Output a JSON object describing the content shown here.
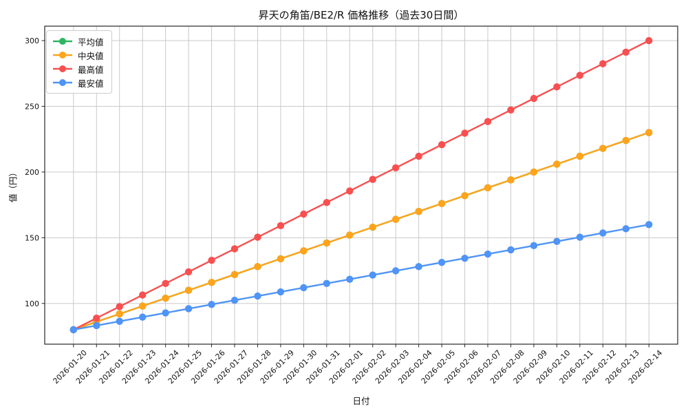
{
  "chart_data": {
    "type": "line",
    "title": "昇天の角笛/BE2/R  価格推移（過去30日間）",
    "xlabel": "日付",
    "ylabel": "値（円）",
    "grid": true,
    "legend_position": "upper left",
    "xtick_rotation": 45,
    "ylim": [
      69,
      311
    ],
    "y_ticks": [
      100,
      150,
      200,
      250,
      300
    ],
    "categories": [
      "2026-01-20",
      "2026-01-21",
      "2026-01-22",
      "2026-01-23",
      "2026-01-24",
      "2026-01-25",
      "2026-01-26",
      "2026-01-27",
      "2026-01-28",
      "2026-01-29",
      "2026-01-30",
      "2026-01-31",
      "2026-02-01",
      "2026-02-02",
      "2026-02-03",
      "2026-02-04",
      "2026-02-05",
      "2026-02-06",
      "2026-02-07",
      "2026-02-08",
      "2026-02-09",
      "2026-02-10",
      "2026-02-11",
      "2026-02-12",
      "2026-02-13",
      "2026-02-14"
    ],
    "series": [
      {
        "key": "mean",
        "name": "平均値",
        "color": "#2db563",
        "values": [
          80,
          86,
          92,
          98,
          104,
          110,
          116,
          122,
          128,
          134,
          140,
          146,
          152,
          158,
          164,
          170,
          176,
          182,
          188,
          194,
          200,
          206,
          212,
          218,
          224,
          230
        ]
      },
      {
        "key": "median",
        "name": "中央値",
        "color": "#ffa41c",
        "values": [
          80,
          86,
          92,
          98,
          104,
          110,
          116,
          122,
          128,
          134,
          140,
          146,
          152,
          158,
          164,
          170,
          176,
          182,
          188,
          194,
          200,
          206,
          212,
          218,
          224,
          230
        ]
      },
      {
        "key": "max",
        "name": "最高値",
        "color": "#f85050",
        "values": [
          80,
          88.8,
          97.6,
          106.4,
          115.2,
          124,
          132.8,
          141.6,
          150.4,
          159.2,
          168,
          176.8,
          185.6,
          194.4,
          203.2,
          212,
          220.8,
          229.6,
          238.4,
          247.2,
          256,
          264.8,
          273.6,
          282.4,
          291.2,
          300
        ]
      },
      {
        "key": "min",
        "name": "最安値",
        "color": "#4f94f6",
        "values": [
          80,
          83.2,
          86.4,
          89.6,
          92.8,
          96,
          99.2,
          102.4,
          105.6,
          108.8,
          112,
          115.2,
          118.4,
          121.6,
          124.8,
          128,
          131.2,
          134.4,
          137.6,
          140.8,
          144,
          147.2,
          150.4,
          153.6,
          156.8,
          160
        ]
      }
    ]
  },
  "colors": {
    "background": "#ffffff",
    "grid": "#c9c9c9",
    "spine": "#262626",
    "text": "#111111",
    "legend_border": "#cccccc"
  }
}
